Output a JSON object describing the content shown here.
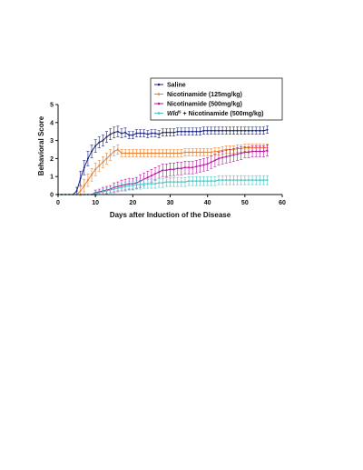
{
  "chart_data": {
    "type": "line",
    "title": "",
    "xlabel": "Days after Induction of the Disease",
    "ylabel": "Behavioral Score",
    "xlim": [
      0,
      60
    ],
    "ylim": [
      0,
      5
    ],
    "xticks": [
      "0",
      "10",
      "20",
      "30",
      "40",
      "50",
      "60"
    ],
    "yticks": [
      "0",
      "1",
      "2",
      "3",
      "4",
      "5"
    ],
    "grid": false,
    "legend_position": "top-right",
    "x": [
      0,
      1,
      2,
      3,
      4,
      5,
      6,
      7,
      8,
      9,
      10,
      11,
      12,
      13,
      14,
      15,
      16,
      17,
      18,
      19,
      20,
      21,
      22,
      23,
      24,
      25,
      26,
      27,
      28,
      29,
      30,
      31,
      32,
      33,
      34,
      35,
      36,
      37,
      38,
      39,
      40,
      41,
      42,
      43,
      44,
      45,
      46,
      47,
      48,
      49,
      50,
      51,
      52,
      53,
      54,
      55,
      56
    ],
    "series": [
      {
        "name": "Saline",
        "name_italic": "",
        "name_superscript": "",
        "color": "#1a237e",
        "marker": "dot",
        "values": [
          0,
          0,
          0,
          0,
          0,
          0.2,
          0.9,
          1.5,
          2.0,
          2.4,
          2.7,
          2.9,
          3.0,
          3.2,
          3.35,
          3.45,
          3.5,
          3.4,
          3.45,
          3.3,
          3.3,
          3.4,
          3.4,
          3.4,
          3.35,
          3.4,
          3.4,
          3.35,
          3.45,
          3.45,
          3.45,
          3.45,
          3.5,
          3.5,
          3.5,
          3.5,
          3.5,
          3.5,
          3.5,
          3.55,
          3.55,
          3.55,
          3.55,
          3.55,
          3.55,
          3.55,
          3.55,
          3.55,
          3.55,
          3.55,
          3.55,
          3.55,
          3.55,
          3.55,
          3.55,
          3.55,
          3.6
        ],
        "errors": [
          0,
          0,
          0,
          0,
          0,
          0.2,
          0.4,
          0.4,
          0.4,
          0.35,
          0.35,
          0.3,
          0.3,
          0.3,
          0.3,
          0.3,
          0.3,
          0.25,
          0.25,
          0.2,
          0.2,
          0.2,
          0.2,
          0.2,
          0.2,
          0.2,
          0.2,
          0.2,
          0.2,
          0.2,
          0.2,
          0.2,
          0.2,
          0.2,
          0.2,
          0.2,
          0.2,
          0.2,
          0.2,
          0.2,
          0.2,
          0.2,
          0.2,
          0.2,
          0.2,
          0.2,
          0.2,
          0.2,
          0.2,
          0.2,
          0.2,
          0.2,
          0.2,
          0.2,
          0.2,
          0.2,
          0.2
        ]
      },
      {
        "name": "Nicotinamide (125mg/kg)",
        "name_italic": "",
        "name_superscript": "",
        "color": "#f07f2b",
        "marker": "dot",
        "values": [
          0,
          0,
          0,
          0,
          0,
          0,
          0.2,
          0.5,
          0.8,
          1.1,
          1.4,
          1.6,
          1.8,
          2.0,
          2.2,
          2.4,
          2.5,
          2.3,
          2.3,
          2.3,
          2.3,
          2.3,
          2.3,
          2.3,
          2.3,
          2.3,
          2.3,
          2.3,
          2.3,
          2.3,
          2.3,
          2.3,
          2.3,
          2.3,
          2.35,
          2.35,
          2.35,
          2.35,
          2.35,
          2.35,
          2.35,
          2.35,
          2.4,
          2.4,
          2.45,
          2.5,
          2.5,
          2.5,
          2.55,
          2.55,
          2.6,
          2.6,
          2.6,
          2.6,
          2.6,
          2.6,
          2.6
        ],
        "errors": [
          0,
          0,
          0,
          0,
          0,
          0,
          0.25,
          0.35,
          0.35,
          0.35,
          0.35,
          0.3,
          0.3,
          0.3,
          0.3,
          0.25,
          0.25,
          0.2,
          0.2,
          0.2,
          0.2,
          0.2,
          0.2,
          0.2,
          0.2,
          0.2,
          0.2,
          0.2,
          0.2,
          0.2,
          0.2,
          0.2,
          0.2,
          0.2,
          0.2,
          0.2,
          0.2,
          0.2,
          0.2,
          0.2,
          0.2,
          0.2,
          0.2,
          0.2,
          0.2,
          0.2,
          0.2,
          0.2,
          0.2,
          0.2,
          0.2,
          0.2,
          0.2,
          0.2,
          0.2,
          0.2,
          0.2
        ]
      },
      {
        "name": "Nicotinamide (500mg/kg)",
        "name_italic": "",
        "name_superscript": "",
        "color": "#b5179e",
        "marker": "dot",
        "values": [
          0,
          0,
          0,
          0,
          0,
          0,
          0,
          0,
          0,
          0,
          0.1,
          0.15,
          0.2,
          0.25,
          0.3,
          0.4,
          0.45,
          0.5,
          0.55,
          0.6,
          0.6,
          0.65,
          0.75,
          0.85,
          0.95,
          1.05,
          1.15,
          1.25,
          1.35,
          1.35,
          1.4,
          1.4,
          1.45,
          1.45,
          1.5,
          1.5,
          1.5,
          1.55,
          1.6,
          1.65,
          1.7,
          1.8,
          1.9,
          2.0,
          2.05,
          2.1,
          2.15,
          2.2,
          2.25,
          2.3,
          2.35,
          2.35,
          2.4,
          2.4,
          2.4,
          2.4,
          2.45
        ],
        "errors": [
          0,
          0,
          0,
          0,
          0,
          0,
          0,
          0,
          0,
          0,
          0.15,
          0.15,
          0.2,
          0.2,
          0.2,
          0.25,
          0.25,
          0.3,
          0.3,
          0.3,
          0.3,
          0.3,
          0.35,
          0.35,
          0.35,
          0.35,
          0.35,
          0.35,
          0.35,
          0.35,
          0.35,
          0.35,
          0.35,
          0.35,
          0.35,
          0.35,
          0.35,
          0.35,
          0.35,
          0.35,
          0.35,
          0.35,
          0.35,
          0.35,
          0.35,
          0.35,
          0.35,
          0.35,
          0.35,
          0.35,
          0.3,
          0.3,
          0.3,
          0.3,
          0.3,
          0.3,
          0.3
        ]
      },
      {
        "name": " + Nicotinamide (500mg/kg)",
        "name_italic": "Wld",
        "name_superscript": "s",
        "color": "#4fc3c4",
        "marker": "dot",
        "values": [
          0,
          0,
          0,
          0,
          0,
          0,
          0,
          0,
          0,
          0,
          0.05,
          0.1,
          0.15,
          0.2,
          0.25,
          0.3,
          0.35,
          0.4,
          0.45,
          0.5,
          0.5,
          0.55,
          0.55,
          0.6,
          0.6,
          0.6,
          0.6,
          0.65,
          0.65,
          0.7,
          0.7,
          0.7,
          0.7,
          0.7,
          0.7,
          0.75,
          0.75,
          0.75,
          0.75,
          0.75,
          0.75,
          0.75,
          0.75,
          0.8,
          0.8,
          0.8,
          0.8,
          0.8,
          0.8,
          0.8,
          0.8,
          0.8,
          0.8,
          0.8,
          0.8,
          0.8,
          0.8
        ],
        "errors": [
          0,
          0,
          0,
          0,
          0,
          0,
          0,
          0,
          0,
          0,
          0.1,
          0.1,
          0.15,
          0.15,
          0.15,
          0.2,
          0.2,
          0.2,
          0.25,
          0.25,
          0.25,
          0.25,
          0.25,
          0.25,
          0.25,
          0.25,
          0.25,
          0.25,
          0.25,
          0.25,
          0.25,
          0.25,
          0.25,
          0.25,
          0.25,
          0.25,
          0.25,
          0.25,
          0.25,
          0.25,
          0.25,
          0.25,
          0.25,
          0.25,
          0.25,
          0.25,
          0.25,
          0.25,
          0.25,
          0.25,
          0.25,
          0.25,
          0.25,
          0.25,
          0.25,
          0.25,
          0.25
        ]
      }
    ]
  }
}
